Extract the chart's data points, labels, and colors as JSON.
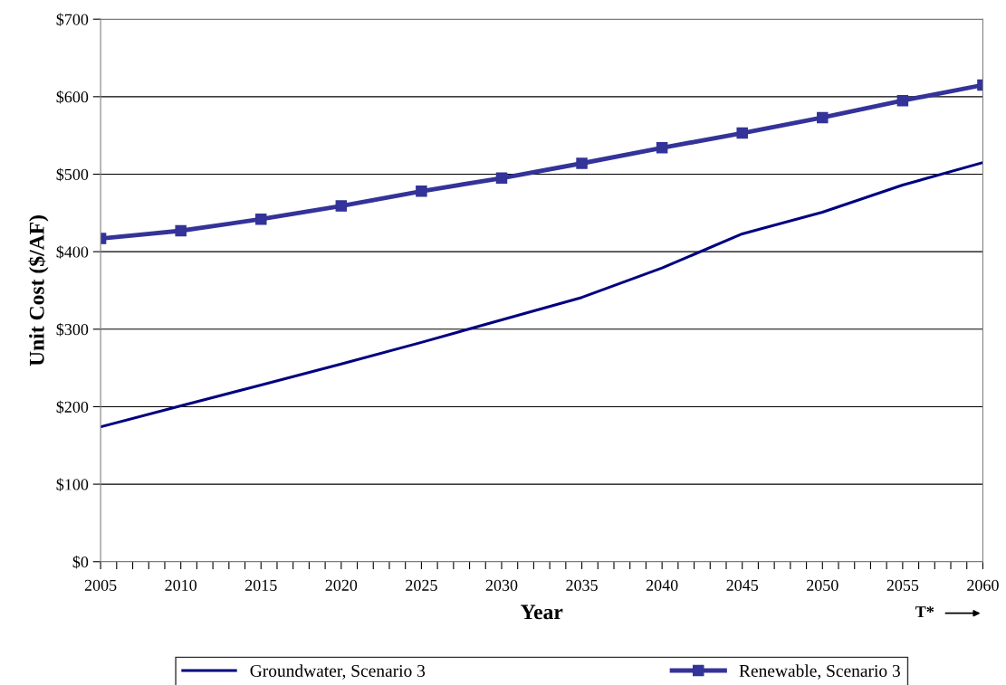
{
  "chart_data": {
    "type": "line",
    "xlabel": "Year",
    "ylabel": "Unit Cost ($/AF)",
    "x": [
      2005,
      2010,
      2015,
      2020,
      2025,
      2030,
      2035,
      2040,
      2045,
      2050,
      2055,
      2060
    ],
    "series": [
      {
        "name": "Groundwater, Scenario 3",
        "color": "#000080",
        "marker": "none",
        "values": [
          174,
          201,
          228,
          255,
          283,
          312,
          341,
          379,
          423,
          451,
          486,
          515
        ]
      },
      {
        "name": "Renewable, Scenario 3",
        "color": "#333399",
        "marker": "square",
        "values": [
          417,
          427,
          442,
          459,
          478,
          495,
          514,
          534,
          553,
          573,
          595,
          615
        ]
      }
    ],
    "xlim": [
      2005,
      2060
    ],
    "xticks": [
      2005,
      {
        "value": 2006,
        "label": null
      },
      {
        "value": 2007,
        "label": null
      },
      {
        "value": 2008,
        "label": null
      },
      {
        "value": 2009,
        "label": null
      },
      2010,
      {
        "value": 2011,
        "label": null
      },
      {
        "value": 2012,
        "label": null
      },
      {
        "value": 2013,
        "label": null
      },
      {
        "value": 2014,
        "label": null
      },
      2015,
      {
        "value": 2016,
        "label": null
      },
      {
        "value": 2017,
        "label": null
      },
      {
        "value": 2018,
        "label": null
      },
      {
        "value": 2019,
        "label": null
      },
      2020,
      {
        "value": 2021,
        "label": null
      },
      {
        "value": 2022,
        "label": null
      },
      {
        "value": 2023,
        "label": null
      },
      {
        "value": 2024,
        "label": null
      },
      2025,
      {
        "value": 2026,
        "label": null
      },
      {
        "value": 2027,
        "label": null
      },
      {
        "value": 2028,
        "label": null
      },
      {
        "value": 2029,
        "label": null
      },
      2030,
      {
        "value": 2031,
        "label": null
      },
      {
        "value": 2032,
        "label": null
      },
      {
        "value": 2033,
        "label": null
      },
      {
        "value": 2034,
        "label": null
      },
      2035,
      {
        "value": 2036,
        "label": null
      },
      {
        "value": 2037,
        "label": null
      },
      {
        "value": 2038,
        "label": null
      },
      {
        "value": 2039,
        "label": null
      },
      2040,
      {
        "value": 2041,
        "label": null
      },
      {
        "value": 2042,
        "label": null
      },
      {
        "value": 2043,
        "label": null
      },
      {
        "value": 2044,
        "label": null
      },
      2045,
      {
        "value": 2046,
        "label": null
      },
      {
        "value": 2047,
        "label": null
      },
      {
        "value": 2048,
        "label": null
      },
      {
        "value": 2049,
        "label": null
      },
      2050,
      {
        "value": 2051,
        "label": null
      },
      {
        "value": 2052,
        "label": null
      },
      {
        "value": 2053,
        "label": null
      },
      {
        "value": 2054,
        "label": null
      },
      2055,
      {
        "value": 2056,
        "label": null
      },
      {
        "value": 2057,
        "label": null
      },
      {
        "value": 2058,
        "label": null
      },
      {
        "value": 2059,
        "label": null
      },
      2060
    ],
    "ylim": [
      0,
      700
    ],
    "yticks": [
      {
        "value": 0,
        "label": "$0"
      },
      {
        "value": 100,
        "label": "$100"
      },
      {
        "value": 200,
        "label": "$200"
      },
      {
        "value": 300,
        "label": "$300"
      },
      {
        "value": 400,
        "label": "$400"
      },
      {
        "value": 500,
        "label": "$500"
      },
      {
        "value": 600,
        "label": "$600"
      },
      {
        "value": 700,
        "label": "$700"
      }
    ],
    "grid": "y",
    "legend": "bottom",
    "line_style": "solid",
    "annotations": [
      "T*"
    ]
  }
}
